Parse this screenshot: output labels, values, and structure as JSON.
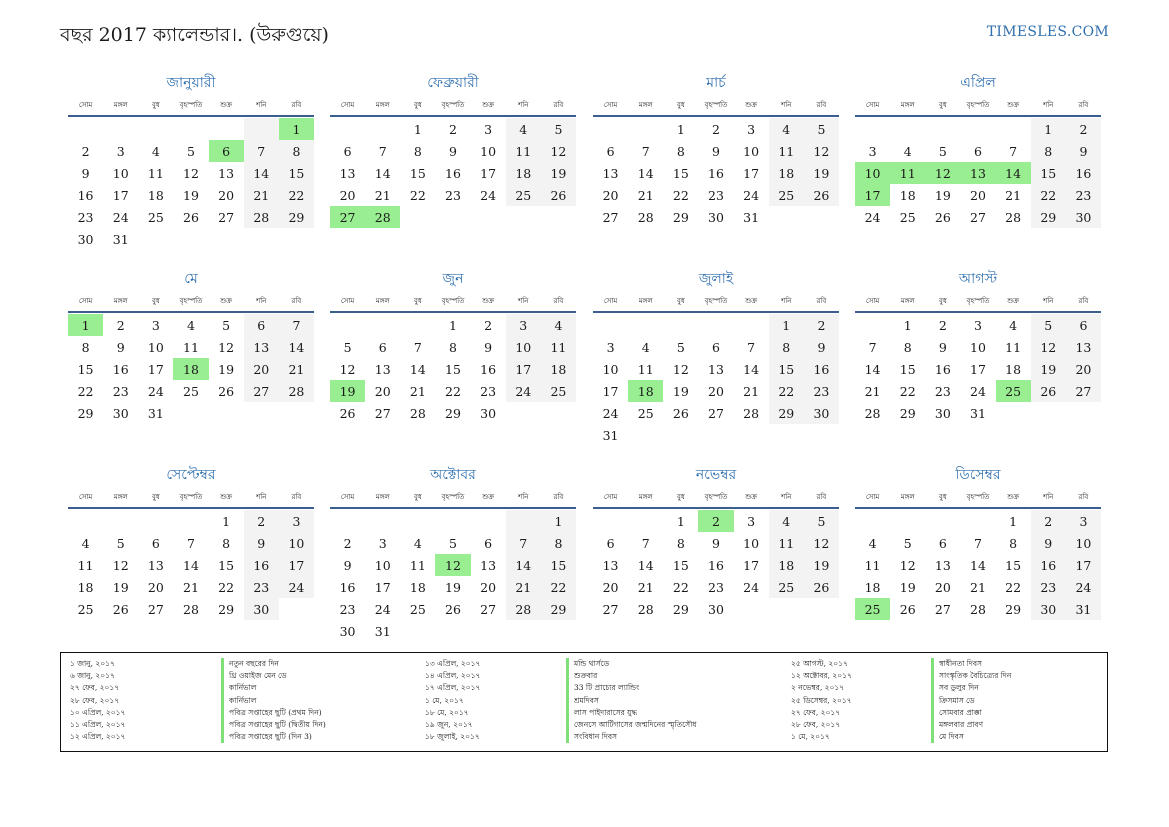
{
  "header": {
    "title": "বছর 2017 ক্যালেন্ডার।. (উরুগুয়ে)",
    "brand": "TIMESLES.COM"
  },
  "weekdays": [
    "সোম",
    "মঙ্গল",
    "বুধ",
    "বৃহস্পতি",
    "শুক্র",
    "শনি",
    "রবি"
  ],
  "months": [
    {
      "name": "জানুয়ারী",
      "offset": 6,
      "days": 31,
      "holidays": [
        1,
        6
      ]
    },
    {
      "name": "ফেব্রুয়ারী",
      "offset": 2,
      "days": 28,
      "holidays": [
        27,
        28
      ]
    },
    {
      "name": "মার্চ",
      "offset": 2,
      "days": 31,
      "holidays": []
    },
    {
      "name": "এপ্রিল",
      "offset": 5,
      "days": 30,
      "holidays": [
        10,
        11,
        12,
        13,
        14,
        17
      ]
    },
    {
      "name": "মে",
      "offset": 0,
      "days": 31,
      "holidays": [
        1,
        18
      ]
    },
    {
      "name": "জুন",
      "offset": 3,
      "days": 30,
      "holidays": [
        19
      ]
    },
    {
      "name": "জুলাই",
      "offset": 5,
      "days": 31,
      "holidays": [
        18
      ]
    },
    {
      "name": "আগস্ট",
      "offset": 1,
      "days": 31,
      "holidays": [
        25
      ]
    },
    {
      "name": "সেপ্টেম্বর",
      "offset": 4,
      "days": 30,
      "holidays": []
    },
    {
      "name": "অক্টোবর",
      "offset": 6,
      "days": 31,
      "holidays": [
        12
      ]
    },
    {
      "name": "নভেম্বর",
      "offset": 2,
      "days": 30,
      "holidays": [
        2
      ]
    },
    {
      "name": "ডিসেম্বর",
      "offset": 4,
      "days": 31,
      "holidays": [
        25
      ]
    }
  ],
  "holidays": [
    {
      "date": "১ জানু, ২০১৭",
      "name": "নতুন বছরের দিন"
    },
    {
      "date": "৬ জানু, ২০১৭",
      "name": "থ্রি ওয়াইজ মেন ডে"
    },
    {
      "date": "২৭ ফেব, ২০১৭",
      "name": "কার্নিভাল"
    },
    {
      "date": "২৮ ফেব, ২০১৭",
      "name": "কার্নিভাল"
    },
    {
      "date": "১০ এপ্রিল, ২০১৭",
      "name": "পবিত্র সপ্তাহের ছুটি (প্রথম দিন)"
    },
    {
      "date": "১১ এপ্রিল, ২০১৭",
      "name": "পবিত্র সপ্তাহের ছুটি (দ্বিতীয় দিন)"
    },
    {
      "date": "১২ এপ্রিল, ২০১৭",
      "name": "পবিত্র সপ্তাহের ছুটি (দিন 3)"
    },
    {
      "date": "১৩ এপ্রিল, ২০১৭",
      "name": "মন্ডি থার্সডে"
    },
    {
      "date": "১৪ এপ্রিল, ২০১৭",
      "name": "শুক্রবার"
    },
    {
      "date": "১৭ এপ্রিল, ২০১৭",
      "name": "33 টি প্রাচ্যের ল্যান্ডিং"
    },
    {
      "date": "১ মে, ২০১৭",
      "name": "শ্রমদিবস"
    },
    {
      "date": "১৮ মে, ২০১৭",
      "name": "লাস পাইদারাসের যুদ্ধ"
    },
    {
      "date": "১৯ জুন, ২০১৭",
      "name": "জেনসে আর্টিগাসের জন্মদিনের স্মৃতিসৌধ"
    },
    {
      "date": "১৮ জুলাই, ২০১৭",
      "name": "সংবিধান দিবস"
    },
    {
      "date": "২৫ আগস্ট, ২০১৭",
      "name": "স্বাধীনতা দিবস"
    },
    {
      "date": "১২ অক্টোবর, ২০১৭",
      "name": "সাংস্কৃতিক বৈচিত্র্যের দিন"
    },
    {
      "date": "২ নভেম্বর, ২০১৭",
      "name": "সব ডুলুর দিন"
    },
    {
      "date": "২৫ ডিসেম্বর, ২০১৭",
      "name": "ক্রিসমাস ডে"
    },
    {
      "date": "২৭ ফেব, ২০১৭",
      "name": "সোমবার প্রাক্কা"
    },
    {
      "date": "২৮ ফেব, ২০১৭",
      "name": "মঙ্গলবার প্রাবণ"
    },
    {
      "date": "১ মে, ২০১৭",
      "name": "মে দিবস"
    }
  ],
  "colors": {
    "accent": "#2f6fae",
    "holiday": "#9aee92",
    "weekend": "#f3f3f3"
  }
}
